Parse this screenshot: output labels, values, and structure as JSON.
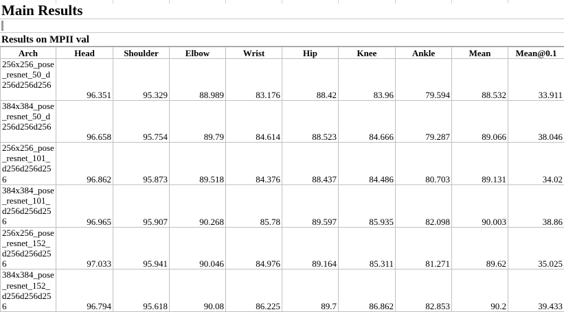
{
  "sheet": {
    "title": "Main Results",
    "subtitle": "Results on MPII val"
  },
  "table": {
    "headers": [
      "Arch",
      "Head",
      "Shoulder",
      "Elbow",
      "Wrist",
      "Hip",
      "Knee",
      "Ankle",
      "Mean",
      "Mean@0.1"
    ],
    "rows": [
      [
        "256x256_pose_resnet_50_d256d256d256",
        "96.351",
        "95.329",
        "88.989",
        "83.176",
        "88.42",
        "83.96",
        "79.594",
        "88.532",
        "33.911"
      ],
      [
        "384x384_pose_resnet_50_d256d256d256",
        "96.658",
        "95.754",
        "89.79",
        "84.614",
        "88.523",
        "84.666",
        "79.287",
        "89.066",
        "38.046"
      ],
      [
        "256x256_pose_resnet_101_d256d256d256",
        "96.862",
        "95.873",
        "89.518",
        "84.376",
        "88.437",
        "84.486",
        "80.703",
        "89.131",
        "34.02"
      ],
      [
        "384x384_pose_resnet_101_d256d256d256",
        "96.965",
        "95.907",
        "90.268",
        "85.78",
        "89.597",
        "85.935",
        "82.098",
        "90.003",
        "38.86"
      ],
      [
        "256x256_pose_resnet_152_d256d256d256",
        "97.033",
        "95.941",
        "90.046",
        "84.976",
        "89.164",
        "85.311",
        "81.271",
        "89.62",
        "35.025"
      ],
      [
        "384x384_pose_resnet_152_d256d256d256",
        "96.794",
        "95.618",
        "90.08",
        "86.225",
        "89.7",
        "86.862",
        "82.853",
        "90.2",
        "39.433"
      ]
    ]
  }
}
